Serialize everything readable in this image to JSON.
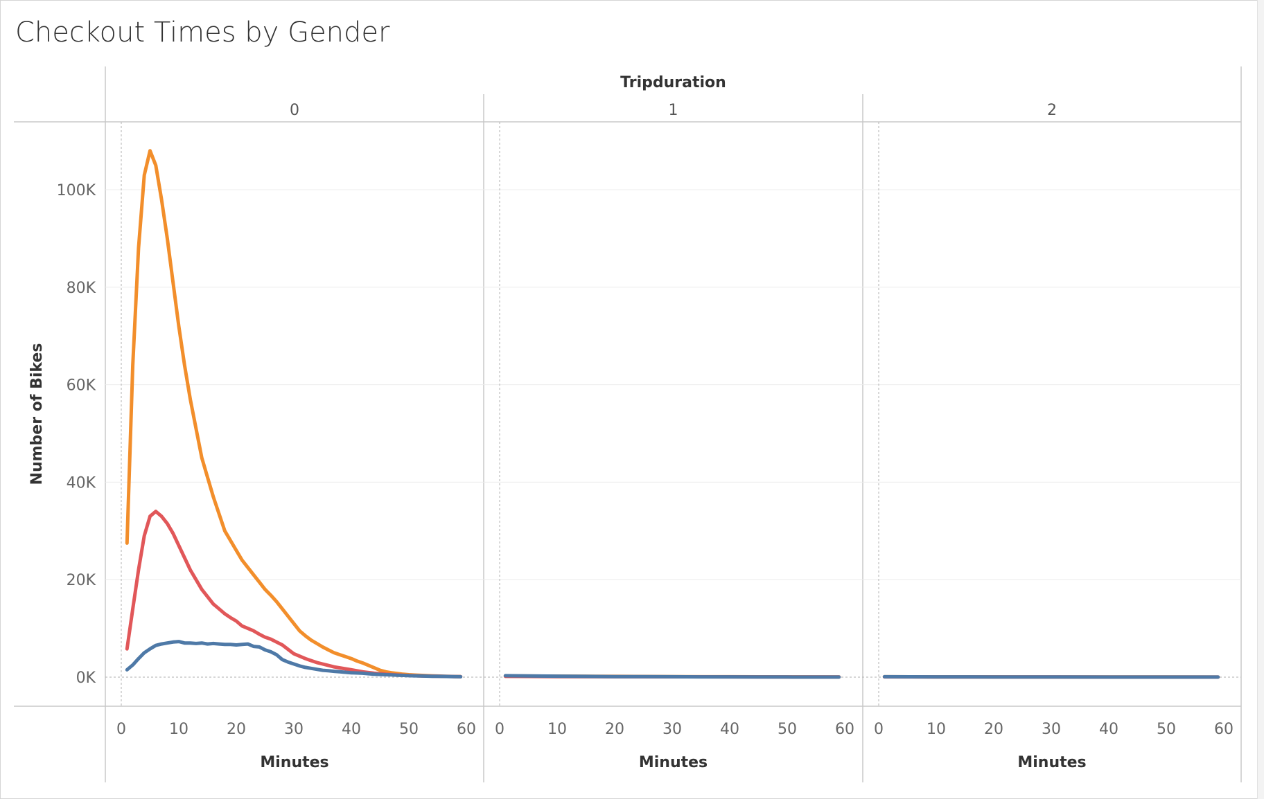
{
  "title": "Checkout Times by Gender",
  "chart_data": {
    "type": "line",
    "title": "Checkout Times by Gender",
    "column_header": "Tripduration",
    "panels": [
      "0",
      "1",
      "2"
    ],
    "xlabel": "Minutes",
    "ylabel": "Number of Bikes",
    "xlim": [
      0,
      60
    ],
    "ylim": [
      0,
      110000
    ],
    "xticks": [
      "0",
      "10",
      "20",
      "30",
      "40",
      "50",
      "60"
    ],
    "yticks": [
      {
        "value": 0,
        "label": "0K"
      },
      {
        "value": 20000,
        "label": "20K"
      },
      {
        "value": 40000,
        "label": "40K"
      },
      {
        "value": 60000,
        "label": "60K"
      },
      {
        "value": 80000,
        "label": "80K"
      },
      {
        "value": 100000,
        "label": "100K"
      }
    ],
    "grid": true,
    "series": [
      {
        "color": "#f28e2b",
        "panels": [
          {
            "x": [
              1,
              2,
              3,
              4,
              5,
              6,
              7,
              8,
              9,
              10,
              11,
              12,
              13,
              14,
              15,
              16,
              17,
              18,
              19,
              20,
              21,
              22,
              23,
              24,
              25,
              26,
              27,
              28,
              29,
              30,
              31,
              32,
              33,
              34,
              35,
              36,
              37,
              38,
              39,
              40,
              41,
              42,
              43,
              44,
              45,
              46,
              47,
              48,
              49,
              50,
              51,
              52,
              53,
              54,
              55,
              56,
              57,
              58,
              59
            ],
            "y": [
              27500,
              64000,
              88000,
              103000,
              108000,
              105000,
              98000,
              90000,
              81000,
              72000,
              64000,
              57000,
              51000,
              45000,
              41000,
              37000,
              33500,
              30000,
              28000,
              26000,
              24000,
              22500,
              21000,
              19500,
              18000,
              16800,
              15500,
              14000,
              12500,
              11000,
              9500,
              8500,
              7600,
              6900,
              6200,
              5600,
              5000,
              4600,
              4200,
              3800,
              3300,
              2900,
              2400,
              1900,
              1400,
              1100,
              900,
              750,
              600,
              500,
              430,
              370,
              320,
              270,
              230,
              190,
              160,
              130,
              110
            ]
          },
          {
            "x": [
              1,
              10,
              20,
              30,
              40,
              50,
              59
            ],
            "y": [
              250,
              200,
              150,
              100,
              80,
              60,
              40
            ]
          },
          {
            "x": [
              1,
              10,
              20,
              30,
              40,
              50,
              59
            ],
            "y": [
              80,
              60,
              50,
              40,
              30,
              25,
              20
            ]
          }
        ]
      },
      {
        "color": "#e15759",
        "panels": [
          {
            "x": [
              1,
              2,
              3,
              4,
              5,
              6,
              7,
              8,
              9,
              10,
              11,
              12,
              13,
              14,
              15,
              16,
              17,
              18,
              19,
              20,
              21,
              22,
              23,
              24,
              25,
              26,
              27,
              28,
              29,
              30,
              31,
              32,
              33,
              34,
              35,
              36,
              37,
              38,
              39,
              40,
              41,
              42,
              43,
              44,
              45,
              46,
              47,
              48,
              49,
              50,
              51,
              52,
              53,
              54,
              55,
              56,
              57,
              58,
              59
            ],
            "y": [
              5800,
              14000,
              22000,
              29000,
              33000,
              34000,
              33000,
              31500,
              29500,
              27000,
              24500,
              22000,
              20000,
              18000,
              16500,
              15000,
              14000,
              13000,
              12200,
              11500,
              10500,
              10000,
              9500,
              8800,
              8200,
              7800,
              7200,
              6600,
              5700,
              4800,
              4300,
              3800,
              3400,
              3000,
              2700,
              2400,
              2100,
              1900,
              1700,
              1500,
              1300,
              1100,
              950,
              800,
              700,
              600,
              520,
              450,
              390,
              340,
              300,
              260,
              230,
              200,
              180,
              160,
              140,
              120,
              100
            ]
          },
          {
            "x": [
              1,
              10,
              20,
              30,
              40,
              50,
              59
            ],
            "y": [
              150,
              120,
              90,
              70,
              50,
              40,
              30
            ]
          },
          {
            "x": [
              1,
              10,
              20,
              30,
              40,
              50,
              59
            ],
            "y": [
              50,
              40,
              30,
              25,
              20,
              15,
              10
            ]
          }
        ]
      },
      {
        "color": "#4e79a7",
        "panels": [
          {
            "x": [
              1,
              2,
              3,
              4,
              5,
              6,
              7,
              8,
              9,
              10,
              11,
              12,
              13,
              14,
              15,
              16,
              17,
              18,
              19,
              20,
              21,
              22,
              23,
              24,
              25,
              26,
              27,
              28,
              29,
              30,
              31,
              32,
              33,
              34,
              35,
              36,
              37,
              38,
              39,
              40,
              41,
              42,
              43,
              44,
              45,
              46,
              47,
              48,
              49,
              50,
              51,
              52,
              53,
              54,
              55,
              56,
              57,
              58,
              59
            ],
            "y": [
              1500,
              2500,
              3800,
              5000,
              5800,
              6500,
              6800,
              7000,
              7200,
              7300,
              7000,
              7000,
              6900,
              7000,
              6800,
              6900,
              6800,
              6700,
              6700,
              6600,
              6700,
              6800,
              6300,
              6200,
              5600,
              5200,
              4600,
              3600,
              3100,
              2700,
              2300,
              2000,
              1800,
              1600,
              1400,
              1300,
              1200,
              1100,
              1000,
              900,
              850,
              800,
              700,
              600,
              550,
              500,
              450,
              400,
              350,
              300,
              270,
              240,
              210,
              190,
              170,
              150,
              130,
              110,
              90
            ]
          },
          {
            "x": [
              1,
              5,
              10,
              15,
              20,
              25,
              30,
              35,
              40,
              45,
              50,
              55,
              59
            ],
            "y": [
              300,
              250,
              200,
              150,
              120,
              100,
              80,
              60,
              50,
              40,
              30,
              20,
              10
            ]
          },
          {
            "x": [
              1,
              10,
              20,
              30,
              40,
              50,
              59
            ],
            "y": [
              80,
              60,
              40,
              30,
              20,
              15,
              10
            ]
          }
        ]
      }
    ]
  }
}
